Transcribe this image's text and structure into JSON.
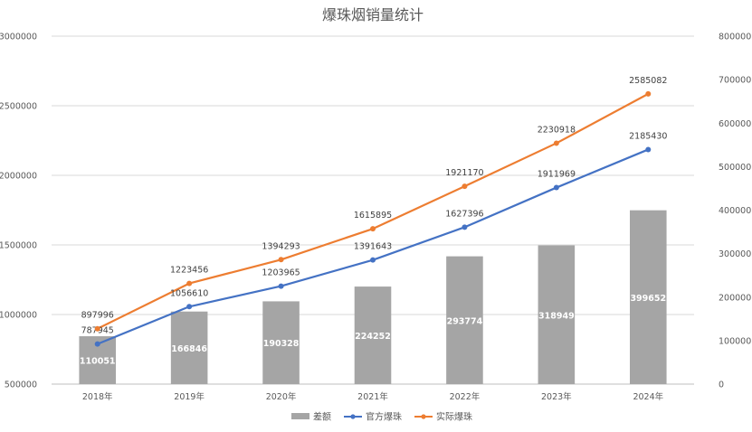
{
  "chart_data": {
    "type": "bar+line",
    "title": "爆珠烟销量统计",
    "categories": [
      "2018年",
      "2019年",
      "2020年",
      "2021年",
      "2022年",
      "2023年",
      "2024年"
    ],
    "y_left": {
      "min": 500000,
      "max": 3000000,
      "ticks": [
        "500000",
        "1000000",
        "1500000",
        "2000000",
        "2500000",
        "3000000"
      ]
    },
    "y_right": {
      "min": 0,
      "max": 800000,
      "ticks": [
        "0",
        "100000",
        "200000",
        "300000",
        "400000",
        "500000",
        "600000",
        "700000",
        "800000"
      ]
    },
    "series": [
      {
        "name": "差额",
        "type": "bar",
        "axis": "right",
        "color": "#a5a5a5",
        "values": [
          110051,
          166846,
          190328,
          224252,
          293774,
          318949,
          399652
        ],
        "labels": [
          "110051",
          "166846",
          "190328",
          "224252",
          "293774",
          "318949",
          "399652"
        ]
      },
      {
        "name": "官方爆珠",
        "type": "line",
        "axis": "left",
        "color": "#4472c4",
        "values": [
          787945,
          1056610,
          1203965,
          1391643,
          1627396,
          1911969,
          2185430
        ],
        "labels": [
          "787945",
          "1056610",
          "1203965",
          "1391643",
          "1627396",
          "1911969",
          "2185430"
        ]
      },
      {
        "name": "实际爆珠",
        "type": "line",
        "axis": "left",
        "color": "#ed7d31",
        "values": [
          897996,
          1223456,
          1394293,
          1615895,
          1921170,
          2230918,
          2585082
        ],
        "labels": [
          "897996",
          "1223456",
          "1394293",
          "1615895",
          "1921170",
          "2230918",
          "2585082"
        ]
      }
    ],
    "grid": true,
    "legend": "bottom-center"
  }
}
